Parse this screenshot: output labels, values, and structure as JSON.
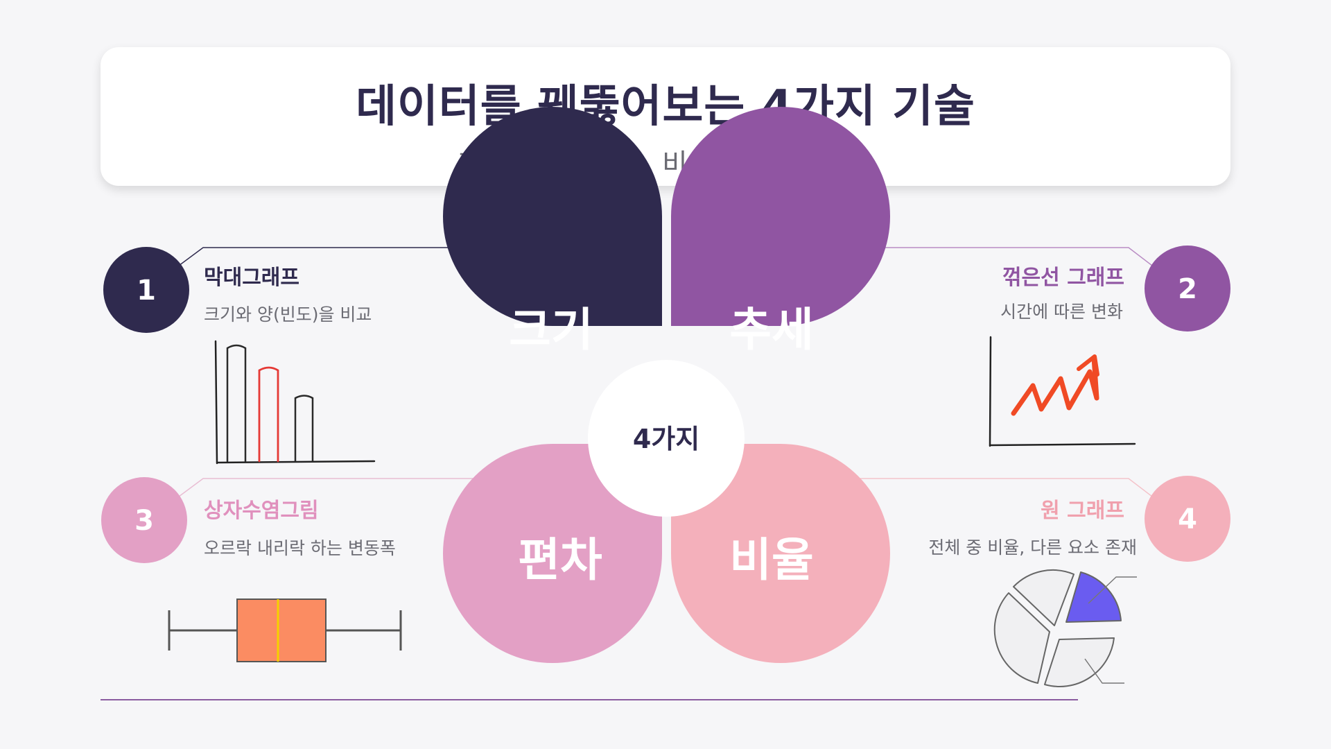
{
  "header": {
    "title": "데이터를 꿰뚫어보는 4가지 기술",
    "subtitle": "크기, 추세, 편차, 비율에 주목하세요"
  },
  "center": {
    "label": "4가지"
  },
  "colors": {
    "dark": "#2f2a4e",
    "purple": "#9055a2",
    "mauve": "#e3a0c5",
    "pink": "#f4b0bb",
    "red_bar": "#e53935",
    "trend_line": "#f04a25",
    "box_fill": "#fb8c62",
    "box_median": "#f5d000",
    "pie_highlight": "#6a5cf0"
  },
  "petals": [
    {
      "label": "크기"
    },
    {
      "label": "추세"
    },
    {
      "label": "편차"
    },
    {
      "label": "비율"
    }
  ],
  "items": [
    {
      "number": "1",
      "title": "막대그래프",
      "description": "크기와 양(빈도)을 비교",
      "icon": "bar-chart-icon"
    },
    {
      "number": "2",
      "title": "꺾은선 그래프",
      "description": "시간에 따른 변화",
      "icon": "line-chart-icon"
    },
    {
      "number": "3",
      "title": "상자수염그림",
      "description": "오르락 내리락 하는 변동폭",
      "icon": "box-plot-icon"
    },
    {
      "number": "4",
      "title": "원 그래프",
      "description": "전체 중 비율, 다른 요소 존재",
      "icon": "pie-chart-icon"
    }
  ]
}
